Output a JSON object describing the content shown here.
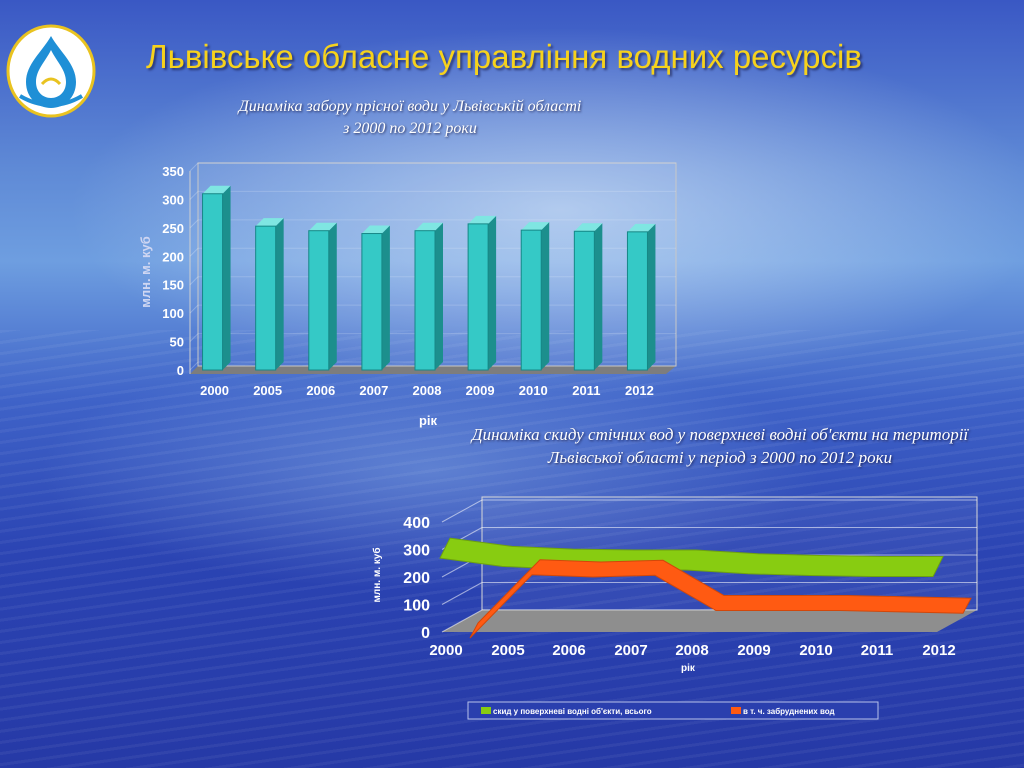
{
  "slide": {
    "title": "Львівське обласне управління водних ресурсів",
    "logo_icon": "water-drop-logo-icon",
    "colors": {
      "title": "#f6d21c",
      "bar": "#35c9c6",
      "green": "#88cc11",
      "orange": "#ff5a12"
    }
  },
  "chart_data": [
    {
      "type": "bar",
      "title_line1": "Динаміка забору прісної води у Львівській області",
      "title_line2": "з 2000 по 2012 роки",
      "xlabel": "рік",
      "ylabel": "млн. м. куб",
      "ylim": [
        0,
        350
      ],
      "yticks": [
        0,
        50,
        100,
        150,
        200,
        250,
        300,
        350
      ],
      "categories": [
        "2000",
        "2005",
        "2006",
        "2007",
        "2008",
        "2009",
        "2010",
        "2011",
        "2012"
      ],
      "values": [
        310,
        253,
        245,
        240,
        245,
        257,
        246,
        244,
        243
      ]
    },
    {
      "type": "area",
      "title_line1": "Динаміка скиду стічних вод у поверхневі водні об'єкти на території",
      "title_line2": "Львівської області у період з 2000 по 2012 роки",
      "xlabel": "рік",
      "ylabel": "млн. м. куб",
      "ylim": [
        0,
        400
      ],
      "yticks": [
        0,
        100,
        200,
        300,
        400
      ],
      "categories": [
        "2000",
        "2005",
        "2006",
        "2007",
        "2008",
        "2009",
        "2010",
        "2011",
        "2012"
      ],
      "legend_position": "bottom",
      "series": [
        {
          "name": "скид у поверхневі водні об'єкти, всього",
          "values": [
            305,
            275,
            265,
            262,
            262,
            248,
            242,
            238,
            238
          ]
        },
        {
          "name": "в т. ч. забруднених вод",
          "values": [
            0,
            230,
            222,
            228,
            100,
            100,
            100,
            95,
            90
          ]
        }
      ]
    }
  ]
}
